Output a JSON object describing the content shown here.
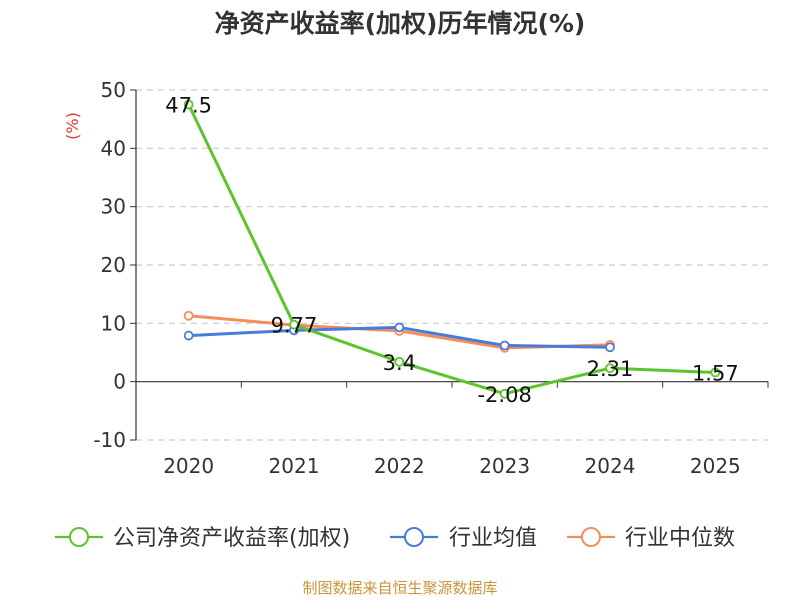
{
  "chart_data": {
    "type": "line",
    "title": "净资产收益率(加权)历年情况(%)",
    "ylabel": "(%)",
    "xlabel": "",
    "categories": [
      "2020",
      "2021",
      "2022",
      "2023",
      "2024",
      "2025"
    ],
    "ylim": [
      -10,
      50
    ],
    "yticks": [
      -10,
      0,
      10,
      20,
      30,
      40,
      50
    ],
    "grid": true,
    "legend_position": "bottom",
    "series": [
      {
        "name": "公司净资产收益率(加权)",
        "color": "#5cc42c",
        "values": [
          47.5,
          9.77,
          3.4,
          -2.08,
          2.31,
          1.57
        ],
        "labels": [
          "47.5",
          "9.77",
          "3.4",
          "-2.08",
          "2.31",
          "1.57"
        ]
      },
      {
        "name": "行业均值",
        "color": "#4a7bd8",
        "values": [
          7.9,
          8.8,
          9.3,
          6.2,
          5.9,
          null
        ]
      },
      {
        "name": "行业中位数",
        "color": "#f28e5c",
        "values": [
          11.3,
          9.7,
          8.7,
          5.8,
          6.3,
          null
        ]
      }
    ]
  },
  "source": "制图数据来自恒生聚源数据库"
}
